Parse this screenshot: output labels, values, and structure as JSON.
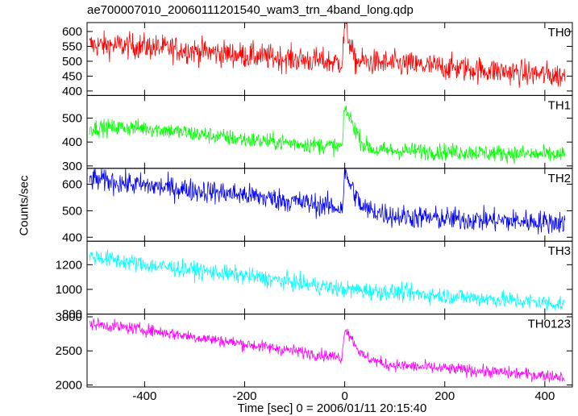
{
  "title": "ae700007010_20060111201540_wam3_trn_4band_long.qdp",
  "ylabel": "Counts/sec",
  "xlabel": "Time [sec] 0 = 2006/01/11 20:15:40",
  "chart_data": {
    "type": "line",
    "title": "ae700007010_20060111201540_wam3_trn_4band_long.qdp",
    "xlabel": "Time [sec] 0 = 2006/01/11 20:15:40",
    "ylabel": "Counts/sec",
    "xlim": [
      -515,
      455
    ],
    "x_ticks": [
      -400,
      -200,
      0,
      200,
      400
    ],
    "x_step": 1,
    "grid": false,
    "panels": [
      {
        "name": "TH0",
        "color": "#ff0000",
        "ylim": [
          385,
          630
        ],
        "y_ticks": [
          400,
          450,
          500,
          550,
          600
        ],
        "trend": [
          [
            -510,
            555
          ],
          [
            -400,
            550
          ],
          [
            -200,
            520
          ],
          [
            -5,
            495
          ],
          [
            0,
            625
          ],
          [
            20,
            500
          ],
          [
            200,
            480
          ],
          [
            440,
            450
          ]
        ],
        "noise": 22
      },
      {
        "name": "TH1",
        "color": "#00ff00",
        "ylim": [
          290,
          595
        ],
        "y_ticks": [
          300,
          400,
          500
        ],
        "trend": [
          [
            -510,
            460
          ],
          [
            -400,
            460
          ],
          [
            -200,
            410
          ],
          [
            -5,
            380
          ],
          [
            0,
            545
          ],
          [
            35,
            395
          ],
          [
            60,
            365
          ],
          [
            200,
            360
          ],
          [
            440,
            345
          ]
        ],
        "noise": 18
      },
      {
        "name": "TH2",
        "color": "#0000ff",
        "ylim": [
          385,
          660
        ],
        "y_ticks": [
          400,
          500,
          600
        ],
        "trend": [
          [
            -510,
            620
          ],
          [
            -400,
            595
          ],
          [
            -200,
            560
          ],
          [
            -5,
            510
          ],
          [
            0,
            640
          ],
          [
            35,
            510
          ],
          [
            100,
            480
          ],
          [
            200,
            470
          ],
          [
            440,
            455
          ]
        ],
        "noise": 22
      },
      {
        "name": "TH3",
        "color": "#00ffff",
        "ylim": [
          800,
          1390
        ],
        "y_ticks": [
          800,
          1000,
          1200
        ],
        "trend": [
          [
            -510,
            1270
          ],
          [
            -400,
            1200
          ],
          [
            -200,
            1110
          ],
          [
            0,
            1000
          ],
          [
            200,
            950
          ],
          [
            440,
            880
          ]
        ],
        "noise": 35
      },
      {
        "name": "TH0123",
        "color": "#ff00ff",
        "ylim": [
          1970,
          3040
        ],
        "y_ticks": [
          2000,
          2500,
          3000
        ],
        "trend": [
          [
            -510,
            2900
          ],
          [
            -400,
            2810
          ],
          [
            -200,
            2600
          ],
          [
            -5,
            2400
          ],
          [
            0,
            2850
          ],
          [
            35,
            2430
          ],
          [
            80,
            2300
          ],
          [
            200,
            2240
          ],
          [
            440,
            2120
          ]
        ],
        "noise": 45
      }
    ]
  }
}
